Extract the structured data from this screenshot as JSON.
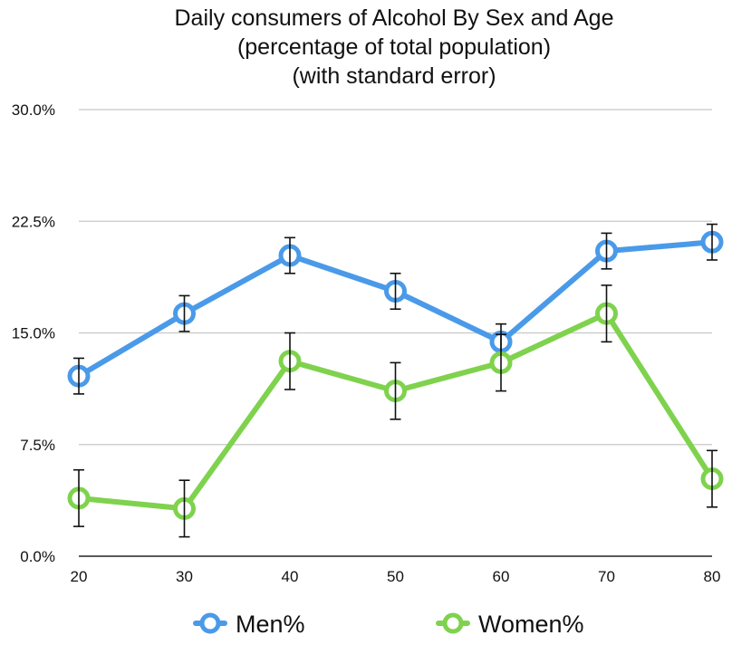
{
  "chart_data": {
    "type": "line",
    "title": [
      "Daily consumers of Alcohol By Sex and Age",
      "(percentage of total population)",
      "(with standard error)"
    ],
    "xlabel": "",
    "ylabel": "",
    "x": [
      20,
      30,
      40,
      50,
      60,
      70,
      80
    ],
    "x_tick_labels": [
      "20",
      "30",
      "40",
      "50",
      "60",
      "70",
      "80"
    ],
    "y_tick_labels": [
      "0.0%",
      "7.5%",
      "15.0%",
      "22.5%",
      "30.0%"
    ],
    "y_ticks": [
      0,
      7.5,
      15,
      22.5,
      30
    ],
    "ylim": [
      0,
      30
    ],
    "grid": true,
    "legend_position": "bottom",
    "series": [
      {
        "name": "Men%",
        "color": "#4a9ae9",
        "values": [
          12.1,
          16.3,
          20.2,
          17.8,
          14.4,
          20.5,
          21.1
        ],
        "error": [
          1.2,
          1.2,
          1.2,
          1.2,
          1.2,
          1.2,
          1.2
        ]
      },
      {
        "name": "Women%",
        "color": "#7fd24d",
        "values": [
          3.9,
          3.2,
          13.1,
          11.1,
          13.0,
          16.3,
          5.2
        ],
        "error": [
          1.9,
          1.9,
          1.9,
          1.9,
          1.9,
          1.9,
          1.9
        ]
      }
    ]
  }
}
